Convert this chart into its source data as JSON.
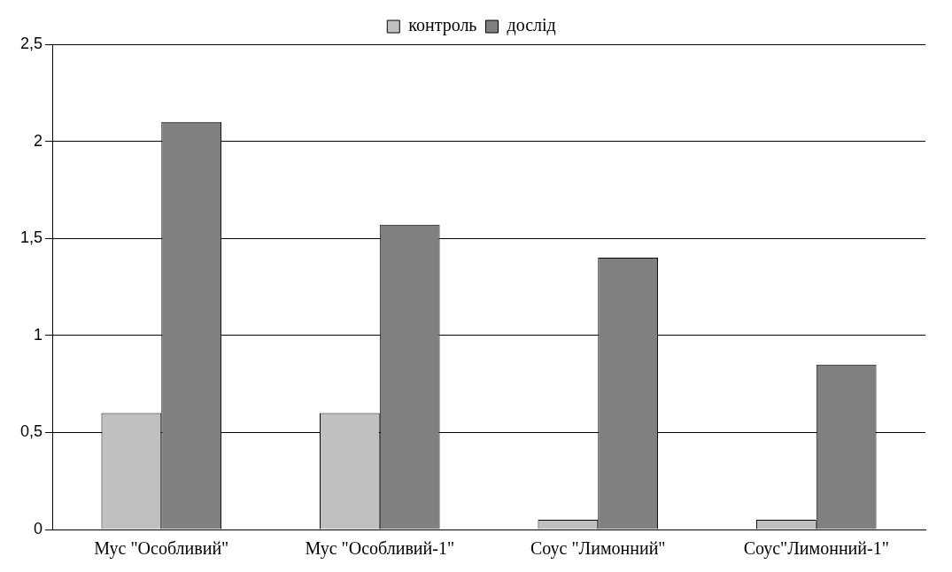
{
  "chart_data": {
    "type": "bar",
    "categories": [
      "Мус \"Особливий\"",
      "Мус \"Особливий-1\"",
      "Соус \"Лимонний\"",
      "Соус\"Лимонний-1\""
    ],
    "series": [
      {
        "name": "контроль",
        "color": "#c0c0c0",
        "values": [
          0.6,
          0.6,
          0.05,
          0.05
        ]
      },
      {
        "name": "дослід",
        "color": "#808080",
        "values": [
          2.1,
          1.57,
          1.4,
          0.85
        ]
      }
    ],
    "ylim": [
      0,
      2.5
    ],
    "yticks": [
      0,
      {
        "value": 0.5,
        "label": "0,5"
      },
      1,
      {
        "value": 1.5,
        "label": "1,5"
      },
      2,
      {
        "value": 2.5,
        "label": "2,5"
      }
    ],
    "grid": "y",
    "legend": "top"
  }
}
